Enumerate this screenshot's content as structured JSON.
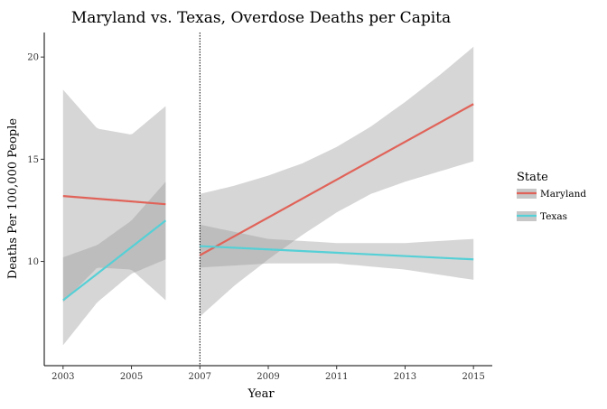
{
  "chart_data": {
    "type": "line",
    "title": "Maryland vs. Texas, Overdose Deaths per Capita",
    "xlabel": "Year",
    "ylabel": "Deaths Per 100,000 People",
    "xlim": [
      2002.45,
      2015.55
    ],
    "ylim": [
      4.9,
      21.2
    ],
    "x_ticks": [
      2003,
      2005,
      2007,
      2009,
      2011,
      2013,
      2015
    ],
    "y_ticks": [
      10,
      15,
      20
    ],
    "vline": {
      "x": 2007,
      "style": "dotted",
      "color": "#000000"
    },
    "legend": {
      "title": "State",
      "placement": "right"
    },
    "grid": false,
    "series": [
      {
        "name": "Maryland",
        "color": "#e06359",
        "segments": [
          {
            "x": [
              2003,
              2006
            ],
            "y": [
              13.2,
              12.8
            ],
            "band_x": [
              2003,
              2004,
              2005,
              2006
            ],
            "band_lower": [
              8.0,
              9.7,
              9.6,
              8.1
            ],
            "band_upper": [
              18.4,
              16.5,
              16.2,
              17.6
            ]
          },
          {
            "x": [
              2007,
              2015
            ],
            "y": [
              10.3,
              17.7
            ],
            "band_x": [
              2007,
              2008,
              2009,
              2010,
              2011,
              2012,
              2013,
              2014,
              2015
            ],
            "band_lower": [
              7.3,
              8.8,
              10.1,
              11.3,
              12.4,
              13.3,
              13.9,
              14.4,
              14.9
            ],
            "band_upper": [
              13.3,
              13.7,
              14.2,
              14.8,
              15.6,
              16.6,
              17.8,
              19.1,
              20.5
            ]
          }
        ]
      },
      {
        "name": "Texas",
        "color": "#55d0d6",
        "segments": [
          {
            "x": [
              2003,
              2006
            ],
            "y": [
              8.1,
              12.0
            ],
            "band_x": [
              2003,
              2004,
              2005,
              2006
            ],
            "band_lower": [
              5.9,
              8.0,
              9.4,
              10.1
            ],
            "band_upper": [
              10.2,
              10.8,
              12.0,
              13.9
            ]
          },
          {
            "x": [
              2007,
              2015
            ],
            "y": [
              10.75,
              10.1
            ],
            "band_x": [
              2007,
              2009,
              2011,
              2013,
              2015
            ],
            "band_lower": [
              9.7,
              9.9,
              9.9,
              9.6,
              9.1
            ],
            "band_upper": [
              11.8,
              11.1,
              10.9,
              10.9,
              11.1
            ]
          }
        ]
      }
    ]
  }
}
